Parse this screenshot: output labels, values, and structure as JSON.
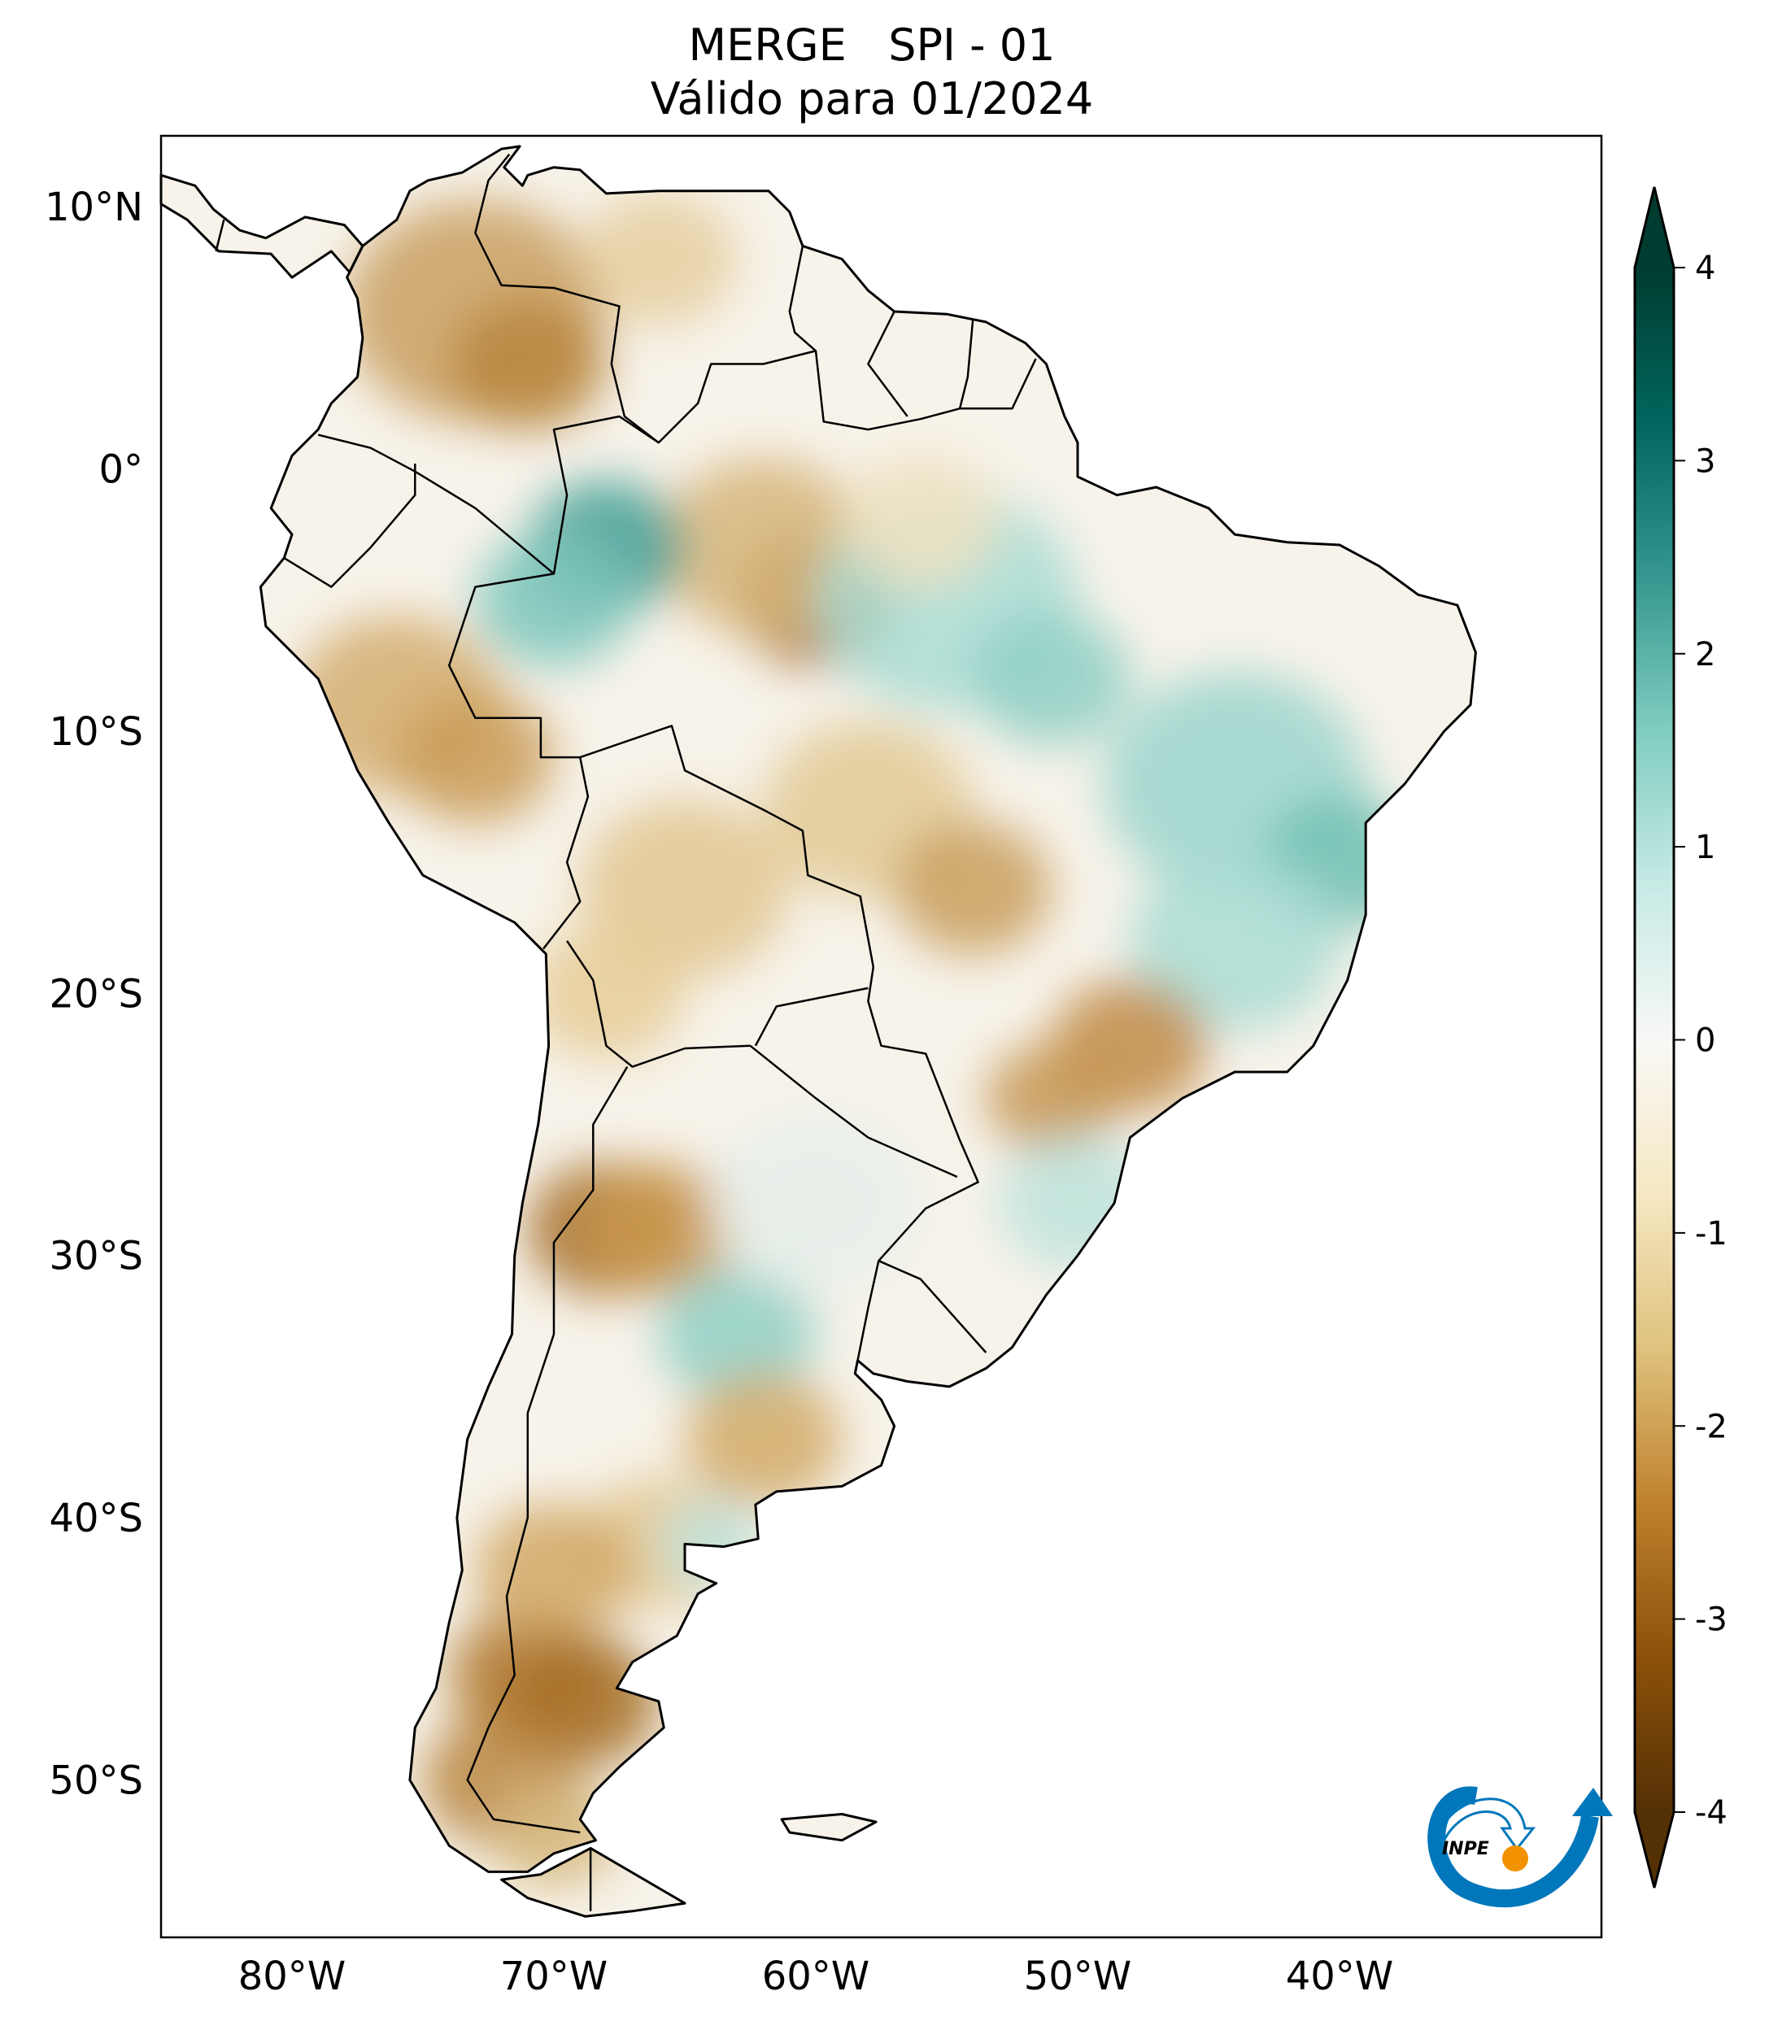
{
  "title": {
    "line1": "MERGE   SPI - 01",
    "line2": "Válido para 01/2024"
  },
  "map": {
    "projection": "PlateCarree",
    "lon_range": [
      -85,
      -30
    ],
    "lat_range": [
      -56,
      12.7
    ],
    "lat_ticks": [
      {
        "value": 10,
        "label": "10°N"
      },
      {
        "value": 0,
        "label": "0°"
      },
      {
        "value": -10,
        "label": "10°S"
      },
      {
        "value": -20,
        "label": "20°S"
      },
      {
        "value": -30,
        "label": "30°S"
      },
      {
        "value": -40,
        "label": "40°S"
      },
      {
        "value": -50,
        "label": "50°S"
      }
    ],
    "lon_ticks": [
      {
        "value": -80,
        "label": "80°W"
      },
      {
        "value": -70,
        "label": "70°W"
      },
      {
        "value": -60,
        "label": "60°W"
      },
      {
        "value": -50,
        "label": "50°W"
      },
      {
        "value": -40,
        "label": "40°W"
      }
    ]
  },
  "colorbar": {
    "range": [
      -4,
      4
    ],
    "extend": "both",
    "ticks": [
      "4",
      "3",
      "2",
      "1",
      "0",
      "-1",
      "-2",
      "-3",
      "-4"
    ],
    "colormap": "BrBG",
    "colors": [
      "#543005",
      "#8c510a",
      "#bf812d",
      "#dfc27d",
      "#f6e8c3",
      "#f5f5f5",
      "#c7eae5",
      "#80cdc1",
      "#35978f",
      "#01665e",
      "#003c30"
    ]
  },
  "logo": {
    "text": "INPE",
    "blue": "#0077bb",
    "orange": "#f39200"
  }
}
